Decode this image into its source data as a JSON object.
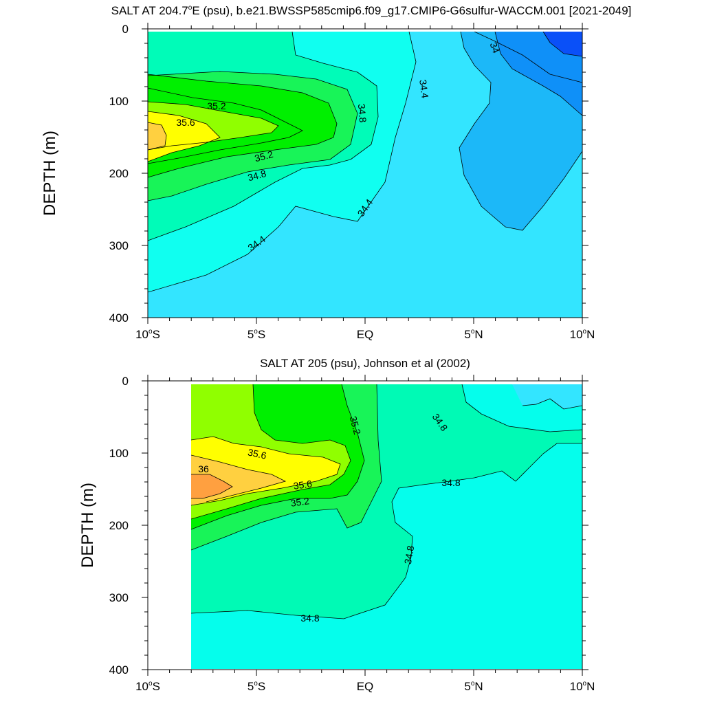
{
  "chart_data": [
    {
      "type": "contour",
      "title": "SALT AT 204.7°E (psu), b.e21.BWSSP585cmip6.f09_g17.CMIP6-G6sulfur-WACCM.001 [2021-2049]",
      "title_main": "SALT AT 204.7",
      "title_deg": "o",
      "title_rest": "E (psu), b.e21.BWSSP585cmip6.f09_g17.CMIP6-G6sulfur-WACCM.001 [2021-2049]",
      "xlabel": "",
      "ylabel": "DEPTH (m)",
      "xlim": [
        -10,
        10
      ],
      "ylim": [
        400,
        0
      ],
      "x_ticks": [
        {
          "value": -10,
          "num": "10",
          "hemi": "S"
        },
        {
          "value": -5,
          "num": "5",
          "hemi": "S"
        },
        {
          "value": 0,
          "num": "EQ",
          "hemi": ""
        },
        {
          "value": 5,
          "num": "5",
          "hemi": "N"
        },
        {
          "value": 10,
          "num": "10",
          "hemi": "N"
        }
      ],
      "deg_symbol": "o",
      "y_ticks": [
        "0",
        "100",
        "200",
        "300",
        "400"
      ],
      "y_tick_values": [
        0,
        100,
        200,
        300,
        400
      ],
      "contour_labels": [
        {
          "text": "35.2",
          "lon": -8.1,
          "depth": 104
        },
        {
          "text": "35.6",
          "lon": -8.9,
          "depth": 128
        },
        {
          "text": "35.2",
          "lon": -4.6,
          "depth": 176
        },
        {
          "text": "34.8",
          "lon": -5.3,
          "depth": 203
        },
        {
          "text": "34.8",
          "lon": 0.1,
          "depth": 114
        },
        {
          "text": "34.4",
          "lon": 2.8,
          "depth": 83
        },
        {
          "text": "34",
          "lon": 6.0,
          "depth": 28
        },
        {
          "text": "34.4",
          "lon": 0.6,
          "depth": 251
        },
        {
          "text": "34.4",
          "lon": -5.0,
          "depth": 303
        }
      ],
      "fill_levels": [
        {
          "name": "<34.0",
          "color": "#0A50F8"
        },
        {
          "name": "34.0-34.2",
          "color": "#0F90F8"
        },
        {
          "name": "34.2-34.4",
          "color": "#1CB8F8"
        },
        {
          "name": "34.4-34.6",
          "color": "#33E5FF"
        },
        {
          "name": "34.6-34.8",
          "color": "#10FFF0"
        },
        {
          "name": "34.8-35.0",
          "color": "#00FCB8"
        },
        {
          "name": "35.0-35.2",
          "color": "#18F458"
        },
        {
          "name": "35.2-35.4",
          "color": "#00F000"
        },
        {
          "name": "35.4-35.6",
          "color": "#90FF00"
        },
        {
          "name": "35.6-35.8",
          "color": "#FFFF00"
        },
        {
          "name": "35.8-36.0",
          "color": "#FFD040"
        },
        {
          "name": ">36.0",
          "color": "#FFA040"
        }
      ]
    },
    {
      "type": "contour",
      "title": "SALT AT 205 (psu), Johnson et al (2002)",
      "title_main": "SALT AT 205 (psu), Johnson et al (2002)",
      "title_deg": "",
      "title_rest": "",
      "xlabel": "",
      "ylabel": "DEPTH (m)",
      "xlim": [
        -10,
        10
      ],
      "ylim": [
        400,
        0
      ],
      "x_ticks": [
        {
          "value": -10,
          "num": "10",
          "hemi": "S"
        },
        {
          "value": -5,
          "num": "5",
          "hemi": "S"
        },
        {
          "value": 0,
          "num": "EQ",
          "hemi": ""
        },
        {
          "value": 5,
          "num": "5",
          "hemi": "N"
        },
        {
          "value": 10,
          "num": "10",
          "hemi": "N"
        }
      ],
      "deg_symbol": "o",
      "y_ticks": [
        "0",
        "100",
        "200",
        "300",
        "400"
      ],
      "y_tick_values": [
        0,
        100,
        200,
        300,
        400
      ],
      "data_start_lon": -8.0,
      "contour_labels": [
        {
          "text": "35.2",
          "lon": -0.4,
          "depth": 57
        },
        {
          "text": "34.8",
          "lon": 3.7,
          "depth": 56
        },
        {
          "text": "35.6",
          "lon": -5.0,
          "depth": 100
        },
        {
          "text": "36",
          "lon": -7.4,
          "depth": 119
        },
        {
          "text": "35.6",
          "lon": -2.4,
          "depth": 139
        },
        {
          "text": "34.8",
          "lon": 4.2,
          "depth": 136
        },
        {
          "text": "35.2",
          "lon": -2.5,
          "depth": 162
        },
        {
          "text": "34.8",
          "lon": 2.6,
          "depth": 235
        },
        {
          "text": "34.8",
          "lon": -2.5,
          "depth": 324
        }
      ],
      "fill_levels": [
        {
          "name": "34.4-34.6",
          "color": "#33E5FF"
        },
        {
          "name": "34.6-34.8",
          "color": "#05FEEC"
        },
        {
          "name": "34.8-35.0",
          "color": "#00FAB5"
        },
        {
          "name": "35.0-35.2",
          "color": "#18F458"
        },
        {
          "name": "35.2-35.4",
          "color": "#00F000"
        },
        {
          "name": "35.4-35.6",
          "color": "#90FF00"
        },
        {
          "name": "35.6-35.8",
          "color": "#FFFF00"
        },
        {
          "name": "35.8-36.0",
          "color": "#FFD040"
        },
        {
          "name": ">36.0",
          "color": "#FFA040"
        }
      ]
    }
  ]
}
